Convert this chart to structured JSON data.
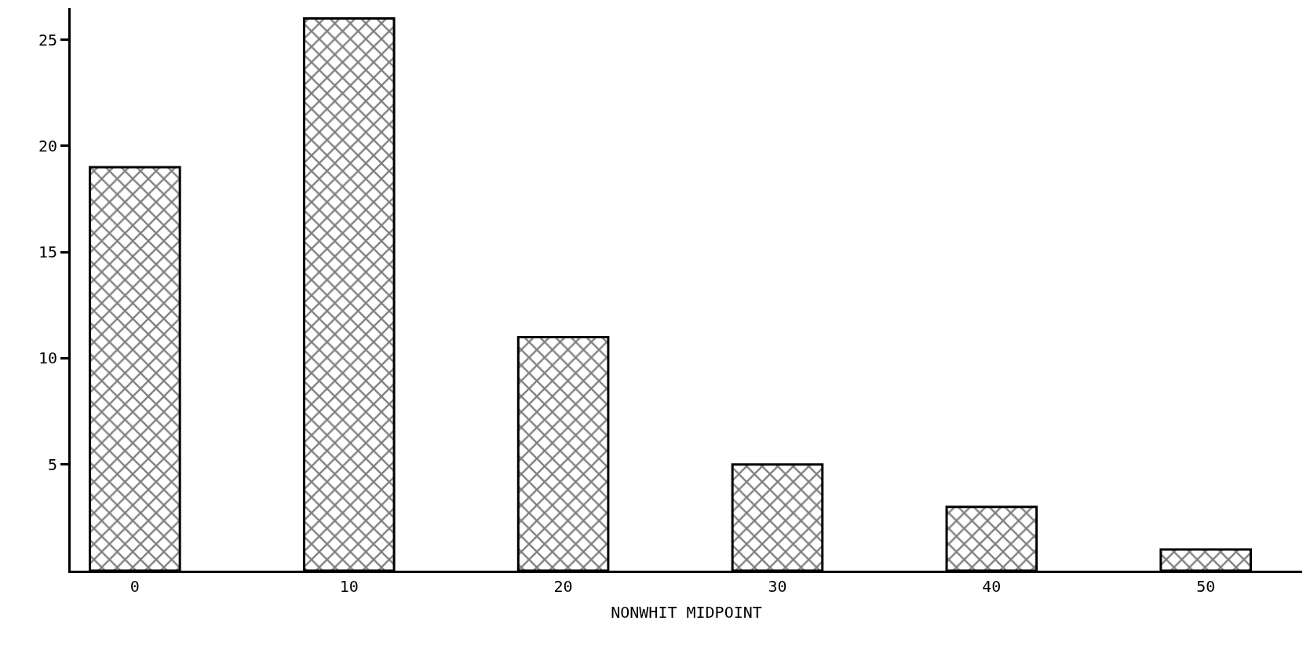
{
  "chart_data": {
    "type": "bar",
    "xlabel": "NONWHIT MIDPOINT",
    "categories": [
      "0",
      "10",
      "20",
      "30",
      "40",
      "50"
    ],
    "values": [
      19,
      26,
      11,
      5,
      3,
      1
    ],
    "color": "#000000",
    "ylim": [
      0,
      26.5
    ],
    "yticks": [
      5,
      10,
      15,
      20,
      25
    ]
  }
}
